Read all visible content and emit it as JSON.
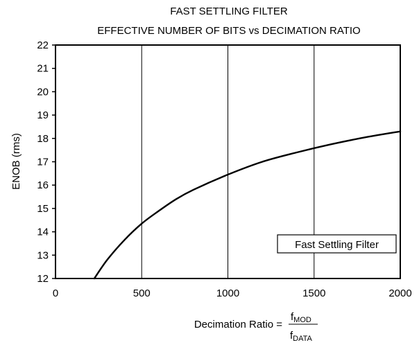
{
  "chart_data": {
    "type": "line",
    "title": "FAST SETTLING FILTER",
    "subtitle": "EFFECTIVE NUMBER OF BITS vs DECIMATION RATIO",
    "ylabel": "ENOB (rms)",
    "xlabel": {
      "prefix": "Decimation Ratio =",
      "numerator": "f",
      "numerator_sub": "MOD",
      "denominator": "f",
      "denominator_sub": "DATA"
    },
    "xlim": [
      0,
      2000
    ],
    "ylim": [
      12,
      22
    ],
    "x_ticks": [
      0,
      500,
      1000,
      1500,
      2000
    ],
    "y_ticks": [
      12,
      13,
      14,
      15,
      16,
      17,
      18,
      19,
      20,
      21,
      22
    ],
    "grid": "x",
    "legend_position": "bottom-right",
    "series": [
      {
        "name": "Fast Settling Filter",
        "x": [
          225,
          300,
          400,
          500,
          600,
          700,
          800,
          1000,
          1200,
          1400,
          1600,
          1800,
          2000
        ],
        "y": [
          12.0,
          12.8,
          13.65,
          14.35,
          14.9,
          15.4,
          15.8,
          16.45,
          17.0,
          17.4,
          17.75,
          18.05,
          18.3
        ]
      }
    ]
  }
}
